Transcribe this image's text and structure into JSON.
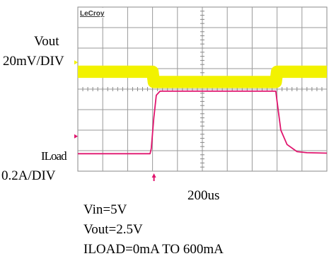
{
  "brand": "LeCroy",
  "channels": {
    "vout": {
      "name": "Vout",
      "scale": "20mV/DIV",
      "color": "#f2f200"
    },
    "iload": {
      "name": "ILoad",
      "scale": "0.2A/DIV",
      "color": "#e0156e"
    }
  },
  "timebase": "200us",
  "conditions": [
    "Vin=5V",
    "Vout=2.5V",
    "ILOAD=0mA TO 600mA"
  ],
  "chart_data": {
    "type": "line",
    "divisions": {
      "x": 10,
      "y": 8
    },
    "series": [
      {
        "name": "Vout",
        "unit": "div",
        "x": [
          0,
          3.0,
          3.05,
          7.95,
          8.0,
          10
        ],
        "y": [
          4.85,
          4.85,
          4.35,
          4.35,
          4.85,
          4.85
        ],
        "noise_band": 0.6
      },
      {
        "name": "ILoad",
        "unit": "div",
        "x": [
          0,
          2.9,
          2.95,
          3.05,
          3.15,
          3.3,
          7.95,
          8.0,
          8.15,
          8.4,
          8.8,
          9.2,
          10
        ],
        "y": [
          0.85,
          0.85,
          1.1,
          2.6,
          3.7,
          3.9,
          3.9,
          3.4,
          2.0,
          1.3,
          0.95,
          0.9,
          0.88
        ]
      }
    ],
    "markers": {
      "vout_level_div": 5.3,
      "iload_level_div": 1.7,
      "trigger_div": 3.0
    }
  }
}
